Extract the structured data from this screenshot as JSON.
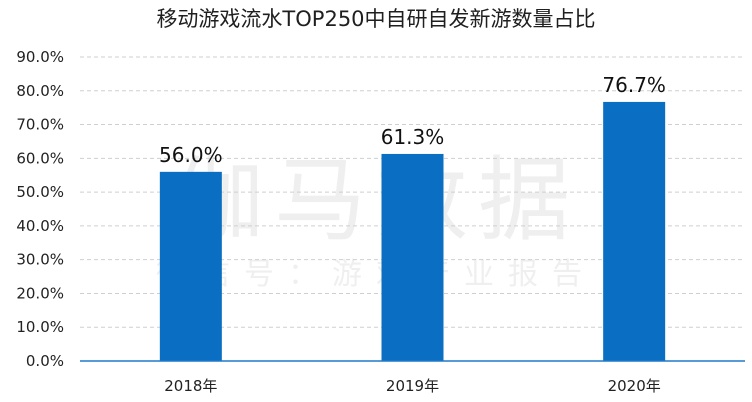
{
  "chart_data": {
    "type": "bar",
    "title": "移动游戏流水TOP250中自研自发新游数量占比",
    "categories": [
      "2018年",
      "2019年",
      "2020年"
    ],
    "values": [
      56.0,
      61.3,
      76.7
    ],
    "data_labels": [
      "56.0%",
      "61.3%",
      "76.7%"
    ],
    "ylim": [
      0,
      90
    ],
    "y_ticks": [
      0,
      10,
      20,
      30,
      40,
      50,
      60,
      70,
      80,
      90
    ],
    "y_tick_labels": [
      "0.0%",
      "10.0%",
      "20.0%",
      "30.0%",
      "40.0%",
      "50.0%",
      "60.0%",
      "70.0%",
      "80.0%",
      "90.0%"
    ],
    "xlabel": "",
    "ylabel": "",
    "grid": true,
    "bar_color": "#0a6fc2"
  },
  "watermark": {
    "brand": "伽马数据",
    "account": "微信号：游戏产业报告"
  }
}
